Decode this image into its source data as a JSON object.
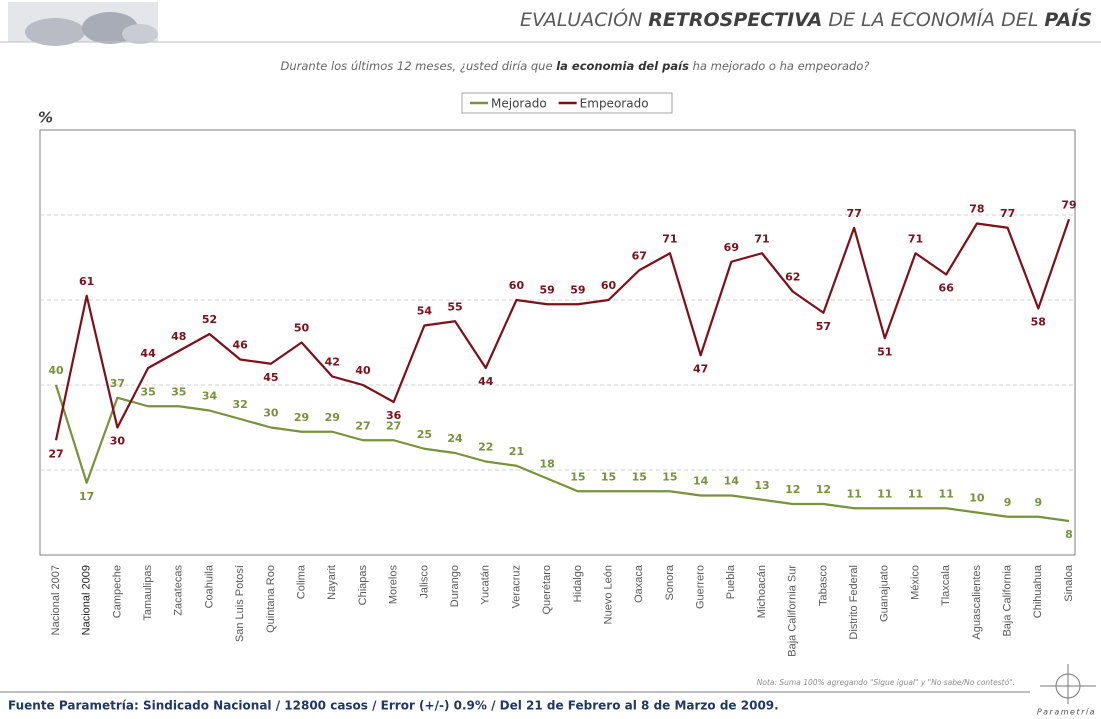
{
  "chart_data": {
    "type": "line",
    "title_parts": [
      "EVALUACIÓN ",
      "RETROSPECTIVA",
      " DE LA ECONOMÍA DEL ",
      "PAÍS"
    ],
    "subtitle_parts": [
      "Durante los últimos 12 meses, ¿usted diría que ",
      "la economia del país",
      " ha mejorado o ha empeorado?"
    ],
    "y_label": "%",
    "categories": [
      "Nacional 2007",
      "Nacional 2009",
      "Campeche",
      "Tamaulipas",
      "Zacatecas",
      "Coahuila",
      "San Luis Potosí",
      "Quintana Roo",
      "Colima",
      "Nayarit",
      "Chiapas",
      "Morelos",
      "Jalisco",
      "Durango",
      "Yucatán",
      "Veracruz",
      "Querétaro",
      "Hidalgo",
      "Nuevo León",
      "Oaxaca",
      "Sonora",
      "Guerrero",
      "Puebla",
      "Michoacán",
      "Baja California Sur",
      "Tabasco",
      "Distrito Federal",
      "Guanajuato",
      "México",
      "Tlaxcala",
      "Aguascalientes",
      "Baja California",
      "Chihuahua",
      "Sinaloa"
    ],
    "series": [
      {
        "name": "Mejorado",
        "color": "#77933c",
        "values": [
          40,
          17,
          37,
          35,
          35,
          34,
          32,
          30,
          29,
          29,
          27,
          27,
          25,
          24,
          22,
          21,
          18,
          15,
          15,
          15,
          15,
          14,
          14,
          13,
          12,
          12,
          11,
          11,
          11,
          11,
          10,
          9,
          9,
          8
        ]
      },
      {
        "name": "Empeorado",
        "color": "#7f0f18",
        "values": [
          27,
          61,
          30,
          44,
          48,
          52,
          46,
          45,
          50,
          42,
          40,
          36,
          54,
          55,
          44,
          60,
          59,
          59,
          60,
          67,
          71,
          47,
          69,
          71,
          62,
          57,
          77,
          51,
          71,
          66,
          78,
          77,
          58,
          79
        ]
      }
    ],
    "ylim": [
      0,
      100
    ],
    "yticks": [
      20,
      40,
      60,
      80
    ],
    "grid": true,
    "legend": "top",
    "note": "Nota: Suma 100% agregando \"Sigue igual\" y \"No sabe/No contestó\".",
    "source": "Fuente Parametría: Sindicado Nacional / 12800 casos / Error (+/-) 0.9% / Del 21 de Febrero al 8 de Marzo de 2009.",
    "brand": "Parametría"
  }
}
